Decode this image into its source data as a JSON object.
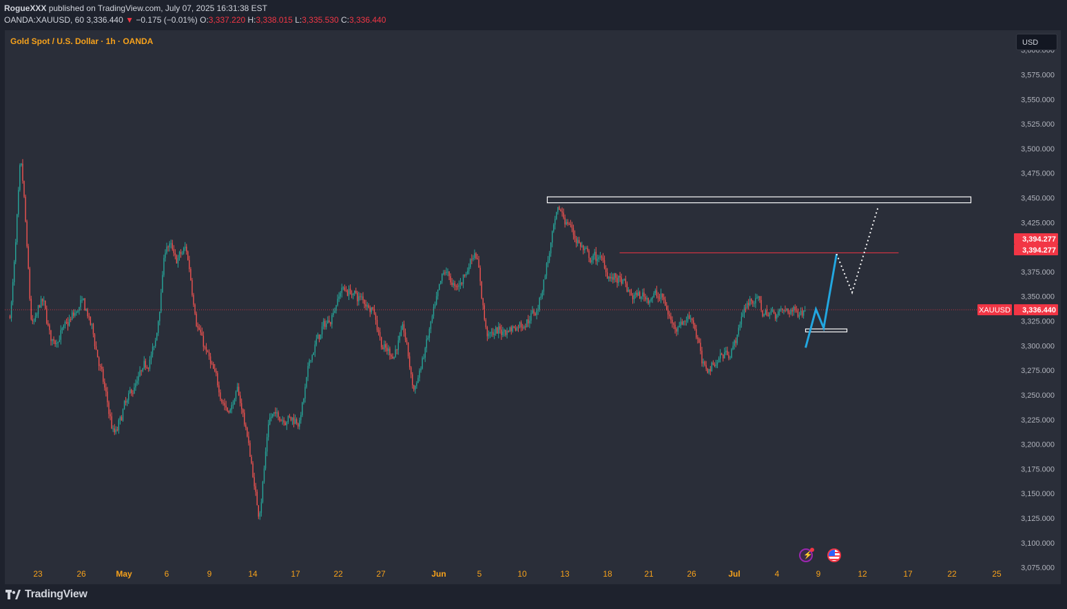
{
  "header": {
    "publisher": "RogueXXX",
    "published_text": "published on TradingView.com, July 07, 2025 16:31:38 EST",
    "symbol_interval": "OANDA:XAUUSD, 60",
    "last": "3,336.440",
    "change": "−0.175 (−0.01%)",
    "open_label": "O:",
    "open": "3,337.220",
    "high_label": "H:",
    "high": "3,338.015",
    "low_label": "L:",
    "low": "3,335.530",
    "close_label": "C:",
    "close": "3,336.440"
  },
  "chart_title": "Gold Spot / U.S. Dollar · 1h · OANDA",
  "currency_button": "USD",
  "footer": {
    "brand": "TradingView"
  },
  "colors": {
    "background": "#2a2e39",
    "up": "#26a69a",
    "down": "#ef5350",
    "title": "#f7a21b",
    "projection": "#22a7e0",
    "level_line": "#f23645",
    "price_label": "#f23645"
  },
  "chart_data": {
    "type": "candlestick",
    "symbol": "XAUUSD",
    "ylim": [
      3058,
      3620
    ],
    "y_ticks": [
      "3,075.000",
      "3,100.000",
      "3,125.000",
      "3,150.000",
      "3,175.000",
      "3,200.000",
      "3,225.000",
      "3,250.000",
      "3,275.000",
      "3,300.000",
      "3,325.000",
      "3,350.000",
      "3,375.000",
      "3,400.000",
      "3,425.000",
      "3,450.000",
      "3,475.000",
      "3,500.000",
      "3,525.000",
      "3,550.000",
      "3,575.000",
      "3,600.000"
    ],
    "x_ticks": [
      "23",
      "26",
      "May",
      "6",
      "9",
      "14",
      "17",
      "22",
      "27",
      "Jun",
      "5",
      "10",
      "13",
      "18",
      "21",
      "26",
      "Jul",
      "4",
      "9",
      "12",
      "17",
      "22",
      "25"
    ],
    "price_path": [
      {
        "t": "2025-04-21",
        "p": 3330
      },
      {
        "t": "2025-04-22",
        "p": 3500
      },
      {
        "t": "2025-04-23",
        "p": 3310
      },
      {
        "t": "2025-04-24",
        "p": 3350
      },
      {
        "t": "2025-04-25",
        "p": 3300
      },
      {
        "t": "2025-04-28",
        "p": 3345
      },
      {
        "t": "2025-04-29",
        "p": 3310
      },
      {
        "t": "2025-05-01",
        "p": 3205
      },
      {
        "t": "2025-05-02",
        "p": 3240
      },
      {
        "t": "2025-05-05",
        "p": 3300
      },
      {
        "t": "2025-05-06",
        "p": 3410
      },
      {
        "t": "2025-05-07",
        "p": 3385
      },
      {
        "t": "2025-05-08",
        "p": 3400
      },
      {
        "t": "2025-05-09",
        "p": 3320
      },
      {
        "t": "2025-05-12",
        "p": 3230
      },
      {
        "t": "2025-05-13",
        "p": 3255
      },
      {
        "t": "2025-05-14",
        "p": 3200
      },
      {
        "t": "2025-05-15",
        "p": 3122
      },
      {
        "t": "2025-05-16",
        "p": 3230
      },
      {
        "t": "2025-05-19",
        "p": 3225
      },
      {
        "t": "2025-05-20",
        "p": 3290
      },
      {
        "t": "2025-05-21",
        "p": 3315
      },
      {
        "t": "2025-05-22",
        "p": 3330
      },
      {
        "t": "2025-05-23",
        "p": 3360
      },
      {
        "t": "2025-05-26",
        "p": 3340
      },
      {
        "t": "2025-05-27",
        "p": 3295
      },
      {
        "t": "2025-05-28",
        "p": 3290
      },
      {
        "t": "2025-05-29",
        "p": 3320
      },
      {
        "t": "2025-05-30",
        "p": 3250
      },
      {
        "t": "2025-06-02",
        "p": 3380
      },
      {
        "t": "2025-06-03",
        "p": 3355
      },
      {
        "t": "2025-06-04",
        "p": 3375
      },
      {
        "t": "2025-06-05",
        "p": 3400
      },
      {
        "t": "2025-06-06",
        "p": 3310
      },
      {
        "t": "2025-06-09",
        "p": 3320
      },
      {
        "t": "2025-06-10",
        "p": 3325
      },
      {
        "t": "2025-06-11",
        "p": 3340
      },
      {
        "t": "2025-06-12",
        "p": 3390
      },
      {
        "t": "2025-06-13",
        "p": 3440
      },
      {
        "t": "2025-06-16",
        "p": 3385
      },
      {
        "t": "2025-06-17",
        "p": 3390
      },
      {
        "t": "2025-06-18",
        "p": 3370
      },
      {
        "t": "2025-06-19",
        "p": 3365
      },
      {
        "t": "2025-06-20",
        "p": 3350
      },
      {
        "t": "2025-06-23",
        "p": 3350
      },
      {
        "t": "2025-06-24",
        "p": 3320
      },
      {
        "t": "2025-06-25",
        "p": 3325
      },
      {
        "t": "2025-06-26",
        "p": 3330
      },
      {
        "t": "2025-06-27",
        "p": 3275
      },
      {
        "t": "2025-06-30",
        "p": 3300
      },
      {
        "t": "2025-07-01",
        "p": 3340
      },
      {
        "t": "2025-07-02",
        "p": 3350
      },
      {
        "t": "2025-07-03",
        "p": 3330
      },
      {
        "t": "2025-07-04",
        "p": 3335
      },
      {
        "t": "2025-07-07",
        "p": 3336.44
      }
    ],
    "price_labels": [
      {
        "text": "3,394.277"
      },
      {
        "text": "3,394.277"
      },
      {
        "symbol": "XAUUSD",
        "text": "3,336.440"
      }
    ],
    "annotations": {
      "resistance_zone": {
        "from": "2025-06-12",
        "to": "2025-07-23",
        "low": 3445,
        "high": 3451
      },
      "support_zone": {
        "from": "2025-07-07",
        "to": "2025-07-11",
        "low": 3314,
        "high": 3317
      },
      "level_line": {
        "from": "2025-06-19",
        "to": "2025-07-16",
        "price": 3394.277
      },
      "projection_solid": [
        {
          "t": "2025-07-07",
          "p": 3298
        },
        {
          "t": "2025-07-08",
          "p": 3337
        },
        {
          "t": "2025-07-08T18:00",
          "p": 3318
        },
        {
          "t": "2025-07-10",
          "p": 3393
        }
      ],
      "projection_dotted": [
        {
          "t": "2025-07-10",
          "p": 3393
        },
        {
          "t": "2025-07-11T12:00",
          "p": 3354
        },
        {
          "t": "2025-07-14",
          "p": 3440
        }
      ],
      "current_price_line": 3336.44
    }
  },
  "event_icons": [
    {
      "name": "lightning-event-icon",
      "glyph": "⚡"
    },
    {
      "name": "us-flag-event-icon",
      "glyph": "☰"
    }
  ]
}
